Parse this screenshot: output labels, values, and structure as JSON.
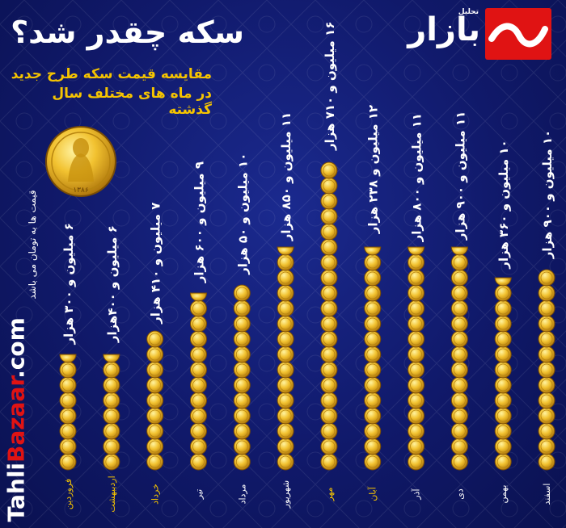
{
  "header": {
    "title": "سکه چقدر شد؟",
    "subtitle_line1": "مقایسه قیمت سکه طرح جدید",
    "subtitle_line2": "در ماه های مختلف سال گذشته",
    "logo_text": "بازار",
    "logo_small": "تحلیل"
  },
  "footer": {
    "website_prefix": "Tahli",
    "website_accent": "Bazaar",
    "website_suffix": ".com",
    "note": "قیمت ها به تومان می باشد"
  },
  "coin_image": {
    "year_text": "۱۳۸۶"
  },
  "colors": {
    "background": "#10196a",
    "highlight": "#f5c400",
    "label": "#ffffff",
    "brand": "#e01313"
  },
  "chart_data": {
    "type": "bar",
    "categories": [
      "فروردین",
      "اردیبهشت",
      "خرداد",
      "تیر",
      "مرداد",
      "شهریور",
      "مهر",
      "آبان",
      "آذر",
      "دی",
      "بهمن",
      "اسفند"
    ],
    "value_labels": [
      "۶ میلیون و ۳۰۰ هزار",
      "۶ میلیون و ۴۰۰هزار",
      "۷ میلیون و ۴۱۰ هزار",
      "۹ میلیون و ۶۰۰ هزار",
      "۱۰ میلیون و ۵۰ هزار",
      "۱۱ میلیون و ۸۵۰ هزار",
      "۱۶ میلیون و ۷۱۰ هزار",
      "۱۲ میلیون و ۲۳۸ هزار",
      "۱۱ میلیون و ۸۰۰ هزار",
      "۱۱ میلیون و ۹۰۰ هزار",
      "۱۰ میلیون و ۳۶۰ هزار",
      "۱۰ میلیون و ۹۰۰ هزار"
    ],
    "values": [
      6300000,
      6400000,
      7410000,
      9600000,
      10050000,
      11850000,
      16710000,
      12238000,
      11800000,
      11900000,
      10360000,
      10900000
    ],
    "highlighted_categories": [
      "فروردین",
      "اردیبهشت",
      "خرداد",
      "مهر",
      "آبان"
    ],
    "unit": "تومان"
  }
}
